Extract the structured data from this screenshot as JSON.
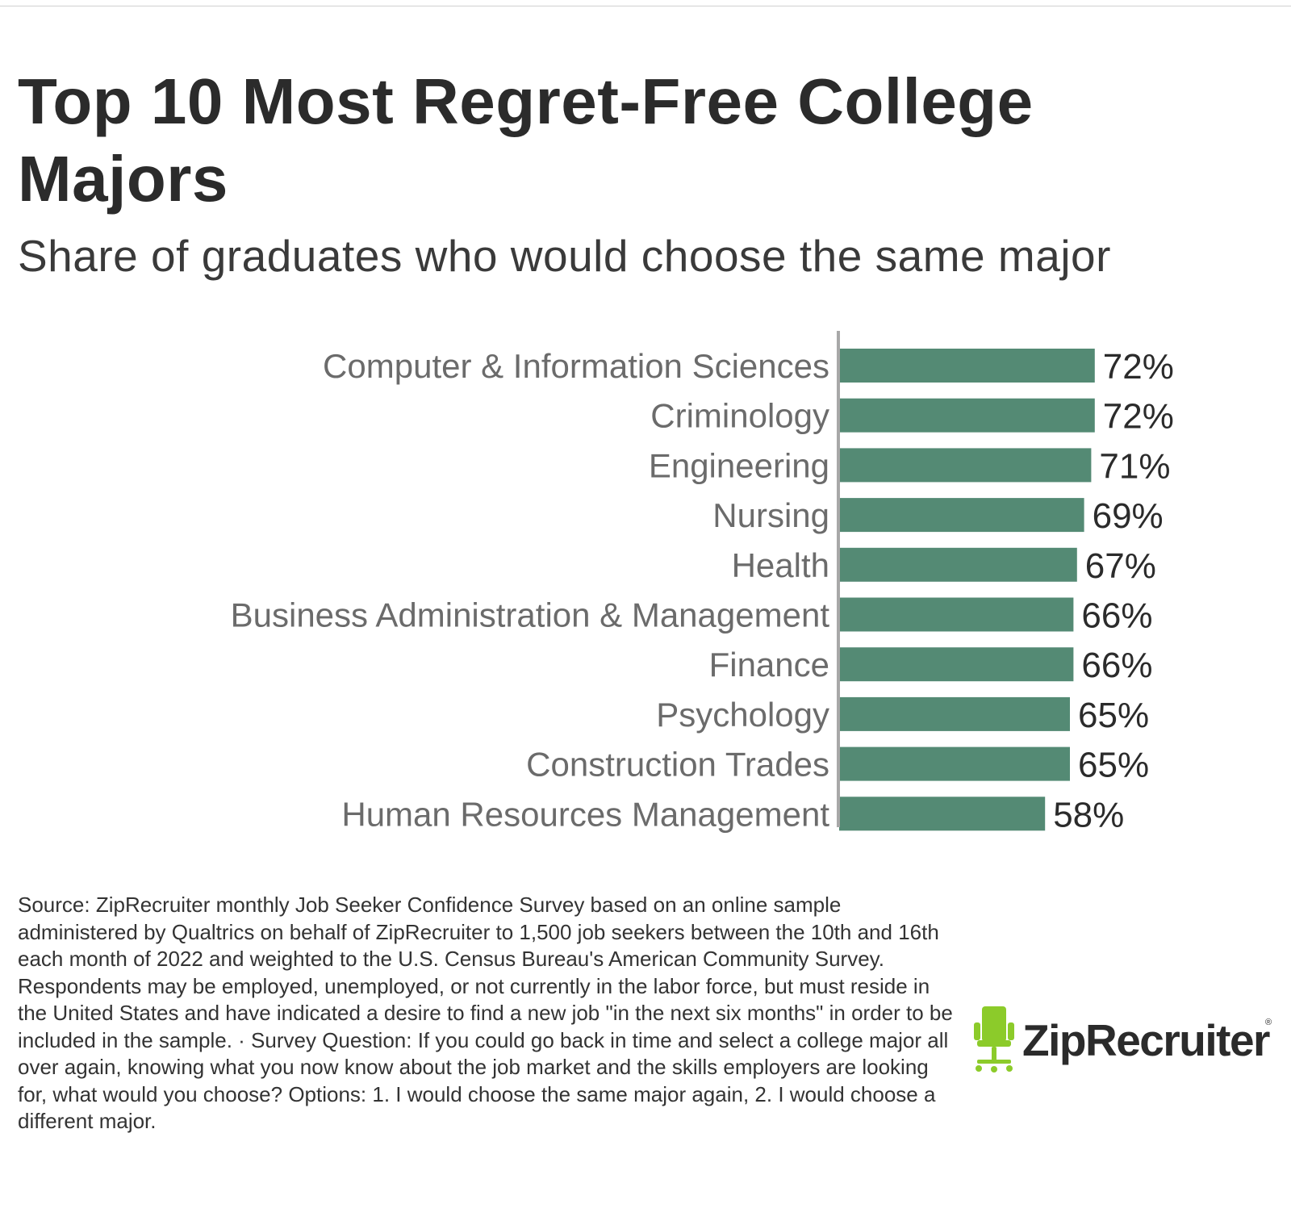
{
  "chart_data": {
    "type": "bar",
    "orientation": "horizontal",
    "title": "Top 10 Most Regret-Free College Majors",
    "subtitle": "Share of graduates who would choose the same major",
    "categories": [
      "Computer & Information Sciences",
      "Criminology",
      "Engineering",
      "Nursing",
      "Health",
      "Business Administration & Management",
      "Finance",
      "Psychology",
      "Construction Trades",
      "Human Resources Management"
    ],
    "values": [
      72,
      72,
      71,
      69,
      67,
      66,
      66,
      65,
      65,
      58
    ],
    "value_labels": [
      "72%",
      "72%",
      "71%",
      "69%",
      "67%",
      "66%",
      "66%",
      "65%",
      "65%",
      "58%"
    ],
    "unit": "%",
    "bar_color": "#548a74",
    "xlabel": "",
    "ylabel": "",
    "grid": false,
    "legend": "none"
  },
  "source": "Source: ZipRecruiter monthly Job Seeker Confidence Survey based on an online sample administered by Qualtrics on behalf of ZipRecruiter to 1,500 job seekers between the 10th and 16th each month of 2022 and weighted to the U.S. Census Bureau's American Community Survey. Respondents may be employed, unemployed, or not currently in the labor force, but must reside in the United States and have indicated a desire to find a new job \"in the next six months\" in order to be included in the sample. · Survey Question: If you could go back in time and select a college major all over again, knowing what you now know about the job market and the skills employers are looking for, what would you choose? Options: 1. I would choose the same major again, 2. I would choose a different major.",
  "logo": {
    "text": "ZipRecruiter",
    "registered": "®",
    "icon": "chair-icon",
    "icon_color": "#8ccb2a"
  }
}
